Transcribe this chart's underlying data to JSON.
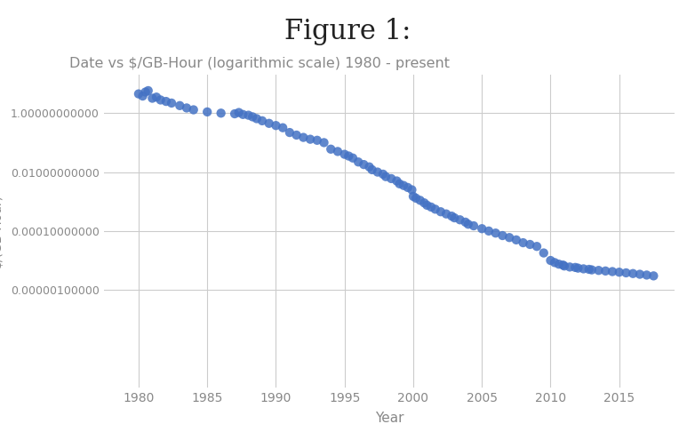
{
  "title": "Figure 1:",
  "subtitle": "Date vs $/GB-Hour (logarithmic scale) 1980 - present",
  "xlabel": "Year",
  "ylabel": "$/(GB-Hour)",
  "background_color": "#ffffff",
  "plot_bg_color": "#ffffff",
  "grid_color": "#cccccc",
  "dot_color": "#4472C4",
  "title_fontsize": 22,
  "subtitle_fontsize": 11.5,
  "xlabel_fontsize": 11,
  "ylabel_fontsize": 10,
  "data": [
    [
      1980.0,
      4.5
    ],
    [
      1980.3,
      3.8
    ],
    [
      1980.5,
      5.2
    ],
    [
      1980.7,
      5.8
    ],
    [
      1981.0,
      3.2
    ],
    [
      1981.3,
      3.5
    ],
    [
      1981.6,
      2.8
    ],
    [
      1982.0,
      2.5
    ],
    [
      1982.4,
      2.2
    ],
    [
      1983.0,
      1.8
    ],
    [
      1983.5,
      1.5
    ],
    [
      1984.0,
      1.3
    ],
    [
      1985.0,
      1.1
    ],
    [
      1986.0,
      1.0
    ],
    [
      1987.0,
      0.95
    ],
    [
      1987.3,
      1.05
    ],
    [
      1987.6,
      0.9
    ],
    [
      1988.0,
      0.85
    ],
    [
      1988.3,
      0.75
    ],
    [
      1988.6,
      0.65
    ],
    [
      1989.0,
      0.55
    ],
    [
      1989.5,
      0.45
    ],
    [
      1990.0,
      0.38
    ],
    [
      1990.5,
      0.32
    ],
    [
      1991.0,
      0.22
    ],
    [
      1991.5,
      0.18
    ],
    [
      1992.0,
      0.15
    ],
    [
      1992.5,
      0.13
    ],
    [
      1993.0,
      0.12
    ],
    [
      1993.5,
      0.1
    ],
    [
      1994.0,
      0.06
    ],
    [
      1994.5,
      0.05
    ],
    [
      1995.0,
      0.04
    ],
    [
      1995.3,
      0.035
    ],
    [
      1995.6,
      0.03
    ],
    [
      1996.0,
      0.022
    ],
    [
      1996.4,
      0.018
    ],
    [
      1996.8,
      0.015
    ],
    [
      1997.0,
      0.012
    ],
    [
      1997.4,
      0.01
    ],
    [
      1997.8,
      0.0085
    ],
    [
      1998.0,
      0.007
    ],
    [
      1998.4,
      0.006
    ],
    [
      1998.8,
      0.005
    ],
    [
      1999.0,
      0.004
    ],
    [
      1999.3,
      0.0035
    ],
    [
      1999.6,
      0.003
    ],
    [
      1999.9,
      0.0025
    ],
    [
      2000.0,
      0.0015
    ],
    [
      2000.2,
      0.0013
    ],
    [
      2000.5,
      0.0011
    ],
    [
      2000.8,
      0.0009
    ],
    [
      2001.0,
      0.00075
    ],
    [
      2001.3,
      0.00065
    ],
    [
      2001.6,
      0.00055
    ],
    [
      2002.0,
      0.00045
    ],
    [
      2002.4,
      0.00038
    ],
    [
      2002.8,
      0.00032
    ],
    [
      2003.0,
      0.00028
    ],
    [
      2003.4,
      0.00024
    ],
    [
      2003.8,
      0.0002
    ],
    [
      2004.0,
      0.00017
    ],
    [
      2004.4,
      0.00015
    ],
    [
      2005.0,
      0.00012
    ],
    [
      2005.5,
      0.0001
    ],
    [
      2006.0,
      8.5e-05
    ],
    [
      2006.5,
      7e-05
    ],
    [
      2007.0,
      6e-05
    ],
    [
      2007.5,
      5e-05
    ],
    [
      2008.0,
      4e-05
    ],
    [
      2008.5,
      3.5e-05
    ],
    [
      2009.0,
      3e-05
    ],
    [
      2009.5,
      1.8e-05
    ],
    [
      2010.0,
      1e-05
    ],
    [
      2010.3,
      8.5e-06
    ],
    [
      2010.6,
      7.5e-06
    ],
    [
      2010.9,
      7e-06
    ],
    [
      2011.0,
      6.5e-06
    ],
    [
      2011.4,
      6e-06
    ],
    [
      2011.8,
      5.8e-06
    ],
    [
      2012.0,
      5.5e-06
    ],
    [
      2012.4,
      5.2e-06
    ],
    [
      2012.8,
      5e-06
    ],
    [
      2013.0,
      4.8e-06
    ],
    [
      2013.5,
      4.6e-06
    ],
    [
      2014.0,
      4.4e-06
    ],
    [
      2014.5,
      4.2e-06
    ],
    [
      2015.0,
      4e-06
    ],
    [
      2015.5,
      3.8e-06
    ],
    [
      2016.0,
      3.6e-06
    ],
    [
      2016.5,
      3.4e-06
    ],
    [
      2017.0,
      3.2e-06
    ],
    [
      2017.5,
      3e-06
    ]
  ],
  "shown_yticks": [
    1.0,
    0.01,
    0.0001,
    1e-06
  ],
  "shown_ylabels": [
    "1.00000000000",
    "0.01000000000",
    "0.00010000000",
    "0.00000100000"
  ],
  "xticks": [
    1980,
    1985,
    1990,
    1995,
    2000,
    2005,
    2010,
    2015
  ],
  "xlabels": [
    "1980",
    "1985",
    "1990",
    "1995",
    "2000",
    "2005",
    "2010",
    "2015"
  ],
  "ylim_min": 5e-10,
  "ylim_max": 20.0,
  "xlim_min": 1977.5,
  "xlim_max": 2019
}
